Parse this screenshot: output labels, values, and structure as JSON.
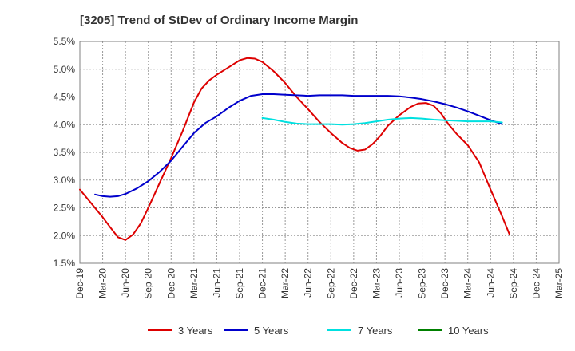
{
  "chart_data": {
    "type": "line",
    "title": "[3205]  Trend of StDev of Ordinary Income Margin",
    "xlabel": "",
    "ylabel": "",
    "x_ticks": [
      "Dec-19",
      "Mar-20",
      "Jun-20",
      "Sep-20",
      "Dec-20",
      "Mar-21",
      "Jun-21",
      "Sep-21",
      "Dec-21",
      "Mar-22",
      "Jun-22",
      "Sep-22",
      "Dec-22",
      "Mar-23",
      "Jun-23",
      "Sep-23",
      "Dec-23",
      "Mar-24",
      "Jun-24",
      "Sep-24",
      "Dec-24",
      "Mar-25"
    ],
    "y_ticks": [
      "5.5%",
      "5.0%",
      "4.5%",
      "4.0%",
      "3.5%",
      "3.0%",
      "2.5%",
      "2.0%",
      "1.5%"
    ],
    "ylim": [
      1.5,
      5.5
    ],
    "grid": true,
    "legend_position": "bottom",
    "series": [
      {
        "name": "3 Years",
        "color": "#dd0000",
        "points": [
          [
            0,
            2.83
          ],
          [
            0.5,
            2.58
          ],
          [
            1,
            2.33
          ],
          [
            1.33,
            2.15
          ],
          [
            1.67,
            1.97
          ],
          [
            2,
            1.92
          ],
          [
            2.33,
            2.02
          ],
          [
            2.67,
            2.22
          ],
          [
            3,
            2.5
          ],
          [
            3.5,
            2.95
          ],
          [
            4,
            3.4
          ],
          [
            4.5,
            3.88
          ],
          [
            5,
            4.4
          ],
          [
            5.33,
            4.65
          ],
          [
            5.67,
            4.8
          ],
          [
            6,
            4.9
          ],
          [
            6.5,
            5.03
          ],
          [
            7,
            5.16
          ],
          [
            7.33,
            5.2
          ],
          [
            7.67,
            5.19
          ],
          [
            8,
            5.13
          ],
          [
            8.5,
            4.96
          ],
          [
            9,
            4.75
          ],
          [
            9.5,
            4.5
          ],
          [
            10,
            4.28
          ],
          [
            10.5,
            4.05
          ],
          [
            11,
            3.85
          ],
          [
            11.5,
            3.67
          ],
          [
            11.83,
            3.58
          ],
          [
            12.17,
            3.53
          ],
          [
            12.5,
            3.55
          ],
          [
            12.83,
            3.65
          ],
          [
            13.17,
            3.8
          ],
          [
            13.5,
            3.98
          ],
          [
            14,
            4.17
          ],
          [
            14.5,
            4.32
          ],
          [
            14.83,
            4.38
          ],
          [
            15.17,
            4.39
          ],
          [
            15.5,
            4.34
          ],
          [
            15.83,
            4.2
          ],
          [
            16.17,
            4.0
          ],
          [
            16.5,
            3.84
          ],
          [
            17,
            3.63
          ],
          [
            17.5,
            3.32
          ],
          [
            18,
            2.83
          ],
          [
            18.5,
            2.35
          ],
          [
            18.83,
            2.02
          ]
        ]
      },
      {
        "name": "5 Years",
        "color": "#0000cc",
        "points": [
          [
            0.67,
            2.74
          ],
          [
            1,
            2.71
          ],
          [
            1.33,
            2.7
          ],
          [
            1.67,
            2.71
          ],
          [
            2,
            2.75
          ],
          [
            2.5,
            2.85
          ],
          [
            3,
            2.98
          ],
          [
            3.5,
            3.15
          ],
          [
            4,
            3.35
          ],
          [
            4.5,
            3.6
          ],
          [
            5,
            3.85
          ],
          [
            5.5,
            4.03
          ],
          [
            6,
            4.15
          ],
          [
            6.5,
            4.3
          ],
          [
            7,
            4.43
          ],
          [
            7.5,
            4.52
          ],
          [
            8,
            4.55
          ],
          [
            8.5,
            4.55
          ],
          [
            9,
            4.54
          ],
          [
            9.5,
            4.53
          ],
          [
            10,
            4.52
          ],
          [
            10.5,
            4.53
          ],
          [
            11,
            4.53
          ],
          [
            11.5,
            4.53
          ],
          [
            12,
            4.52
          ],
          [
            12.5,
            4.52
          ],
          [
            13,
            4.52
          ],
          [
            13.5,
            4.52
          ],
          [
            14,
            4.51
          ],
          [
            14.5,
            4.49
          ],
          [
            15,
            4.46
          ],
          [
            15.5,
            4.42
          ],
          [
            16,
            4.37
          ],
          [
            16.5,
            4.31
          ],
          [
            17,
            4.24
          ],
          [
            17.5,
            4.16
          ],
          [
            18,
            4.08
          ],
          [
            18.5,
            4.01
          ]
        ]
      },
      {
        "name": "7 Years",
        "color": "#00e0e0",
        "points": [
          [
            8,
            4.12
          ],
          [
            8.5,
            4.09
          ],
          [
            9,
            4.05
          ],
          [
            9.5,
            4.02
          ],
          [
            10,
            4.01
          ],
          [
            10.5,
            4.01
          ],
          [
            11,
            4.01
          ],
          [
            11.5,
            4.0
          ],
          [
            12,
            4.01
          ],
          [
            12.5,
            4.03
          ],
          [
            13,
            4.06
          ],
          [
            13.5,
            4.09
          ],
          [
            14,
            4.11
          ],
          [
            14.5,
            4.12
          ],
          [
            15,
            4.11
          ],
          [
            15.5,
            4.09
          ],
          [
            16,
            4.08
          ],
          [
            16.5,
            4.07
          ],
          [
            17,
            4.06
          ],
          [
            17.5,
            4.06
          ],
          [
            18,
            4.06
          ],
          [
            18.5,
            4.04
          ]
        ]
      },
      {
        "name": "10 Years",
        "color": "#008000",
        "points": []
      }
    ]
  }
}
